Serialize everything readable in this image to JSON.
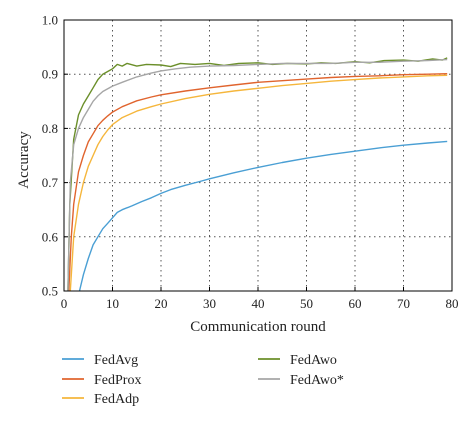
{
  "chart_data": {
    "type": "line",
    "title": "",
    "xlabel": "Communication round",
    "ylabel": "Accuracy",
    "xlim": [
      0,
      80
    ],
    "ylim": [
      0.5,
      1.0
    ],
    "x_ticks": [
      0,
      10,
      20,
      30,
      40,
      50,
      60,
      70,
      80
    ],
    "y_ticks": [
      0.5,
      0.6,
      0.7,
      0.8,
      0.9,
      1.0
    ],
    "y_tick_labels": [
      "0.5",
      "0.6",
      "0.7",
      "0.8",
      "0.9",
      "1.0"
    ],
    "grid": "dotted",
    "legend_position": "below",
    "series": [
      {
        "name": "FedAvg",
        "color": "#4a9fd4",
        "points": [
          [
            3.2,
            0.5
          ],
          [
            4,
            0.53
          ],
          [
            5,
            0.56
          ],
          [
            6,
            0.585
          ],
          [
            7,
            0.6
          ],
          [
            8,
            0.615
          ],
          [
            9,
            0.625
          ],
          [
            10,
            0.635
          ],
          [
            11,
            0.645
          ],
          [
            12,
            0.65
          ],
          [
            14,
            0.657
          ],
          [
            16,
            0.665
          ],
          [
            18,
            0.672
          ],
          [
            20,
            0.68
          ],
          [
            22,
            0.687
          ],
          [
            25,
            0.695
          ],
          [
            28,
            0.702
          ],
          [
            30,
            0.707
          ],
          [
            35,
            0.718
          ],
          [
            40,
            0.728
          ],
          [
            45,
            0.737
          ],
          [
            50,
            0.745
          ],
          [
            55,
            0.752
          ],
          [
            60,
            0.758
          ],
          [
            65,
            0.764
          ],
          [
            70,
            0.769
          ],
          [
            75,
            0.773
          ],
          [
            79,
            0.776
          ]
        ]
      },
      {
        "name": "FedProx",
        "color": "#e0642e",
        "points": [
          [
            1,
            0.5
          ],
          [
            1.5,
            0.6
          ],
          [
            2,
            0.66
          ],
          [
            3,
            0.72
          ],
          [
            4,
            0.75
          ],
          [
            5,
            0.775
          ],
          [
            6,
            0.79
          ],
          [
            7,
            0.805
          ],
          [
            8,
            0.815
          ],
          [
            9,
            0.823
          ],
          [
            10,
            0.83
          ],
          [
            12,
            0.84
          ],
          [
            15,
            0.851
          ],
          [
            18,
            0.858
          ],
          [
            20,
            0.862
          ],
          [
            25,
            0.869
          ],
          [
            30,
            0.875
          ],
          [
            35,
            0.88
          ],
          [
            40,
            0.885
          ],
          [
            45,
            0.888
          ],
          [
            50,
            0.891
          ],
          [
            55,
            0.894
          ],
          [
            60,
            0.896
          ],
          [
            65,
            0.897
          ],
          [
            70,
            0.899
          ],
          [
            75,
            0.9
          ],
          [
            79,
            0.901
          ]
        ]
      },
      {
        "name": "FedAdp",
        "color": "#f5b63c",
        "points": [
          [
            1.3,
            0.5
          ],
          [
            2,
            0.6
          ],
          [
            3,
            0.66
          ],
          [
            4,
            0.7
          ],
          [
            5,
            0.73
          ],
          [
            6,
            0.75
          ],
          [
            7,
            0.77
          ],
          [
            8,
            0.785
          ],
          [
            9,
            0.797
          ],
          [
            10,
            0.807
          ],
          [
            12,
            0.82
          ],
          [
            15,
            0.832
          ],
          [
            18,
            0.84
          ],
          [
            20,
            0.845
          ],
          [
            25,
            0.855
          ],
          [
            30,
            0.863
          ],
          [
            35,
            0.869
          ],
          [
            40,
            0.874
          ],
          [
            45,
            0.879
          ],
          [
            50,
            0.883
          ],
          [
            55,
            0.887
          ],
          [
            60,
            0.89
          ],
          [
            65,
            0.893
          ],
          [
            70,
            0.895
          ],
          [
            75,
            0.897
          ],
          [
            79,
            0.898
          ]
        ]
      },
      {
        "name": "FedAwo",
        "color": "#6b8f2a",
        "points": [
          [
            0.8,
            0.5
          ],
          [
            1.2,
            0.66
          ],
          [
            2,
            0.78
          ],
          [
            3,
            0.825
          ],
          [
            4,
            0.845
          ],
          [
            5,
            0.86
          ],
          [
            6,
            0.875
          ],
          [
            7,
            0.89
          ],
          [
            8,
            0.9
          ],
          [
            9,
            0.905
          ],
          [
            10,
            0.91
          ],
          [
            11,
            0.918
          ],
          [
            12,
            0.915
          ],
          [
            13,
            0.92
          ],
          [
            15,
            0.915
          ],
          [
            17,
            0.918
          ],
          [
            20,
            0.917
          ],
          [
            22,
            0.914
          ],
          [
            24,
            0.92
          ],
          [
            27,
            0.918
          ],
          [
            30,
            0.92
          ],
          [
            33,
            0.916
          ],
          [
            36,
            0.92
          ],
          [
            40,
            0.921
          ],
          [
            43,
            0.918
          ],
          [
            46,
            0.92
          ],
          [
            50,
            0.919
          ],
          [
            53,
            0.921
          ],
          [
            56,
            0.92
          ],
          [
            60,
            0.923
          ],
          [
            63,
            0.921
          ],
          [
            66,
            0.925
          ],
          [
            70,
            0.926
          ],
          [
            73,
            0.924
          ],
          [
            76,
            0.928
          ],
          [
            78,
            0.926
          ],
          [
            79,
            0.93
          ]
        ]
      },
      {
        "name": "FedAwo*",
        "color": "#a6a6a6",
        "points": [
          [
            0.8,
            0.5
          ],
          [
            1.3,
            0.7
          ],
          [
            2,
            0.77
          ],
          [
            3,
            0.8
          ],
          [
            4,
            0.82
          ],
          [
            5,
            0.835
          ],
          [
            6,
            0.85
          ],
          [
            7,
            0.86
          ],
          [
            8,
            0.868
          ],
          [
            10,
            0.878
          ],
          [
            12,
            0.885
          ],
          [
            15,
            0.895
          ],
          [
            18,
            0.902
          ],
          [
            20,
            0.906
          ],
          [
            23,
            0.91
          ],
          [
            26,
            0.913
          ],
          [
            30,
            0.915
          ],
          [
            35,
            0.916
          ],
          [
            40,
            0.918
          ],
          [
            45,
            0.92
          ],
          [
            50,
            0.92
          ],
          [
            55,
            0.92
          ],
          [
            60,
            0.922
          ],
          [
            65,
            0.922
          ],
          [
            70,
            0.924
          ],
          [
            75,
            0.925
          ],
          [
            79,
            0.927
          ]
        ]
      }
    ]
  }
}
